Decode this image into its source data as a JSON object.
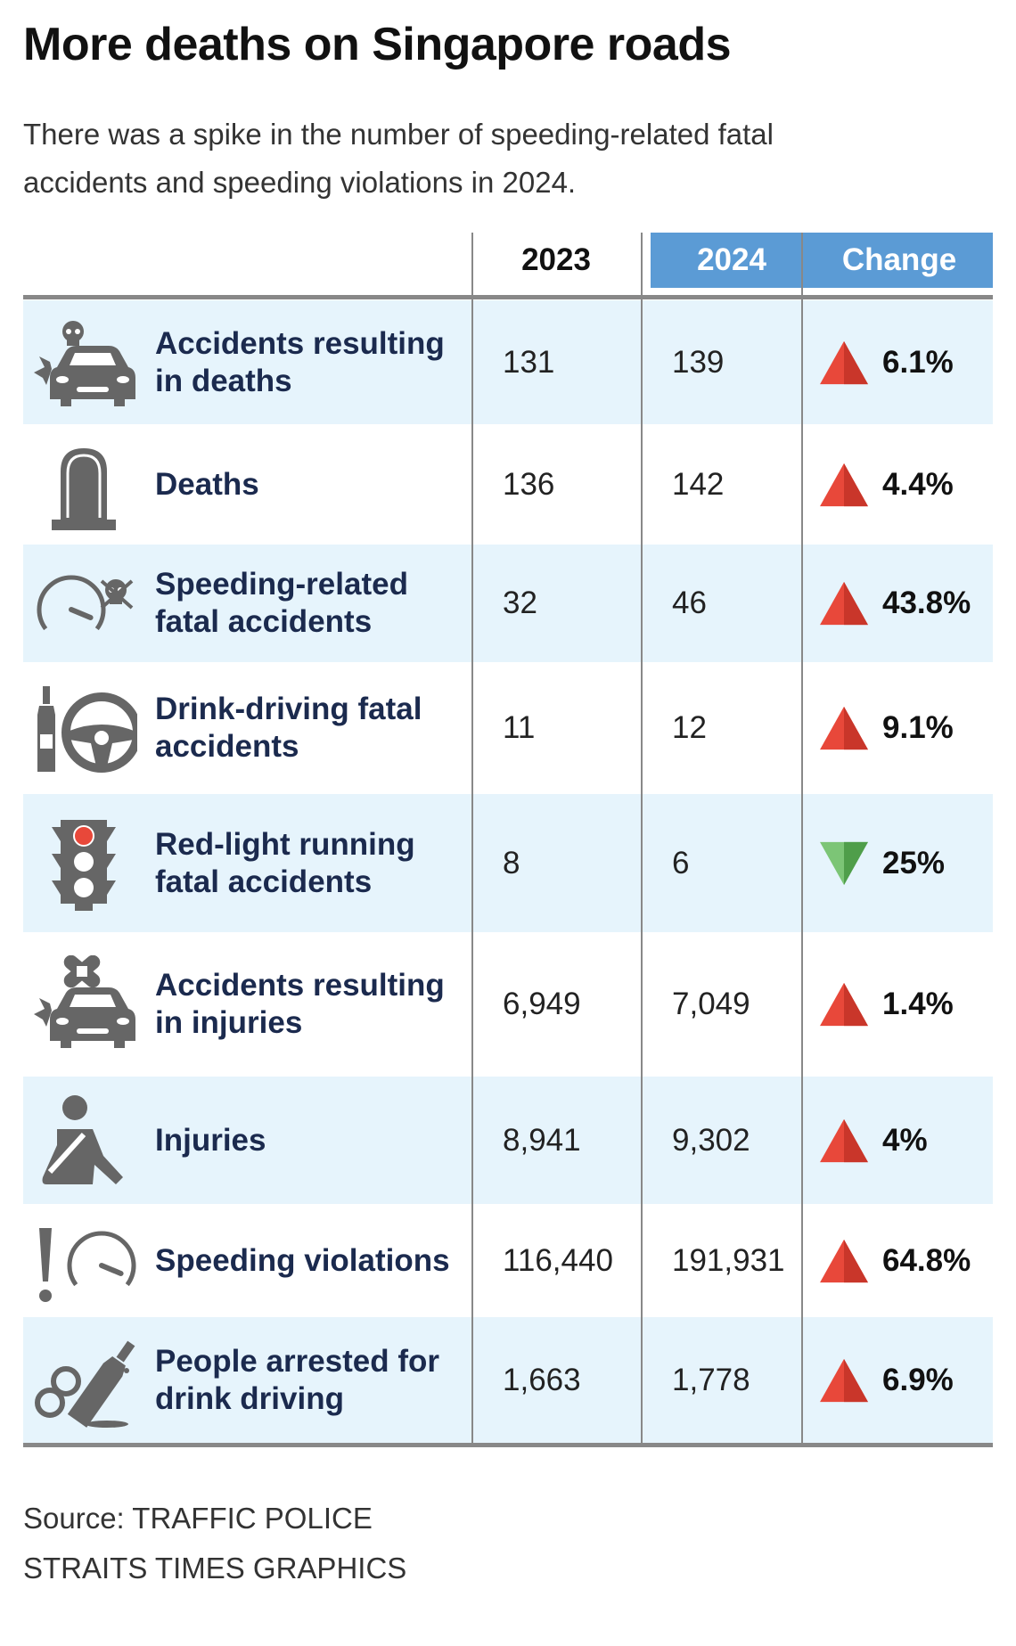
{
  "title": "More deaths on Singapore roads",
  "subtitle": "There was a spike in the number of speeding-related fatal accidents and speeding violations in 2024.",
  "colors": {
    "header_fill": "#5b9bd5",
    "row_alt": "#e6f4fc",
    "label_text": "#1b2a4e",
    "increase": "#e8483a",
    "decrease": "#5cb85c",
    "icon": "#666666"
  },
  "chart_data": {
    "type": "table",
    "columns": [
      "2023",
      "2024",
      "Change"
    ],
    "rows": [
      {
        "label": "Accidents resulting in deaths",
        "icon": "car-crash-skull-icon",
        "y2023": "131",
        "y2024": "139",
        "change": "6.1%",
        "direction": "up"
      },
      {
        "label": "Deaths",
        "icon": "tombstone-icon",
        "y2023": "136",
        "y2024": "142",
        "change": "4.4%",
        "direction": "up"
      },
      {
        "label": "Speeding-related fatal accidents",
        "icon": "speedometer-skull-icon",
        "y2023": "32",
        "y2024": "46",
        "change": "43.8%",
        "direction": "up"
      },
      {
        "label": "Drink-driving fatal accidents",
        "icon": "bottle-steering-wheel-icon",
        "y2023": "11",
        "y2024": "12",
        "change": "9.1%",
        "direction": "up"
      },
      {
        "label": "Red-light running fatal accidents",
        "icon": "traffic-light-icon",
        "y2023": "8",
        "y2024": "6",
        "change": "25%",
        "direction": "down"
      },
      {
        "label": "Accidents resulting in injuries",
        "icon": "car-crash-bandage-icon",
        "y2023": "6,949",
        "y2024": "7,049",
        "change": "1.4%",
        "direction": "up"
      },
      {
        "label": "Injuries",
        "icon": "injured-person-icon",
        "y2023": "8,941",
        "y2024": "9,302",
        "change": "4%",
        "direction": "up"
      },
      {
        "label": "Speeding violations",
        "icon": "exclamation-speedometer-icon",
        "y2023": "116,440",
        "y2024": "191,931",
        "change": "64.8%",
        "direction": "up"
      },
      {
        "label": "People arrested for drink driving",
        "icon": "handcuffs-bottle-icon",
        "y2023": "1,663",
        "y2024": "1,778",
        "change": "6.9%",
        "direction": "up"
      }
    ]
  },
  "source": "Source: TRAFFIC POLICE",
  "credit": "STRAITS TIMES GRAPHICS"
}
